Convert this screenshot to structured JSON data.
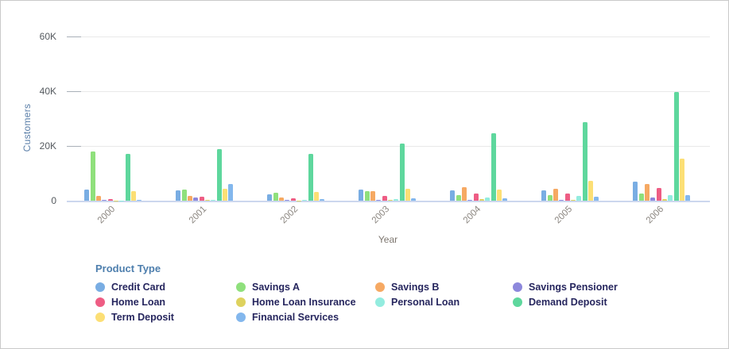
{
  "window": {
    "background": "#ffffff",
    "border_color": "#c9c9c9"
  },
  "colors": {
    "gridline": "#e9e9e9",
    "tick_dash": "#a9b0b8",
    "baseline": "#ccd7ee",
    "y_axis_title": "#5b7fa9",
    "x_axis_title": "#7d766f",
    "tick_label": "#555a5f",
    "x_tick_label": "#8b8680",
    "legend_title_color": "#4d7ead",
    "legend_label_color": "#26265e"
  },
  "chart_data": {
    "type": "bar",
    "title": "",
    "xlabel": "Year",
    "ylabel": "Customers",
    "categories": [
      "2000",
      "2001",
      "2002",
      "2003",
      "2004",
      "2005",
      "2006"
    ],
    "ylim": [
      0,
      60000
    ],
    "y_ticks": [
      {
        "label": "0",
        "value": 0
      },
      {
        "label": "20K",
        "value": 20000
      },
      {
        "label": "40K",
        "value": 40000
      },
      {
        "label": "60K",
        "value": 60000
      }
    ],
    "grid": true,
    "legend": {
      "title": "Product Type",
      "position": "bottom"
    },
    "series": [
      {
        "name": "Credit Card",
        "color": "#79ade3",
        "values": [
          4200,
          3800,
          2400,
          4000,
          3800,
          3900,
          7000
        ]
      },
      {
        "name": "Savings A",
        "color": "#8fe07c",
        "values": [
          18000,
          4100,
          2900,
          3600,
          2000,
          2000,
          2600
        ]
      },
      {
        "name": "Savings B",
        "color": "#f6a963",
        "values": [
          1800,
          1700,
          1200,
          3600,
          4900,
          4400,
          6200
        ]
      },
      {
        "name": "Savings Pensioner",
        "color": "#8d88dc",
        "values": [
          150,
          1200,
          150,
          300,
          150,
          400,
          1200
        ]
      },
      {
        "name": "Home Loan",
        "color": "#ee5d84",
        "values": [
          500,
          1500,
          900,
          1800,
          2600,
          2700,
          4600
        ]
      },
      {
        "name": "Home Loan Insurance",
        "color": "#ded25e",
        "values": [
          80,
          150,
          100,
          200,
          600,
          250,
          500
        ]
      },
      {
        "name": "Personal Loan",
        "color": "#93ecdf",
        "values": [
          100,
          250,
          200,
          700,
          1200,
          1700,
          2000
        ]
      },
      {
        "name": "Demand Deposit",
        "color": "#5ed79d",
        "values": [
          17000,
          18900,
          17100,
          20900,
          24600,
          28700,
          39700
        ]
      },
      {
        "name": "Term Deposit",
        "color": "#fcdf75",
        "values": [
          3600,
          4300,
          3300,
          4300,
          4200,
          7300,
          15400
        ]
      },
      {
        "name": "Financial Services",
        "color": "#83b7ed",
        "values": [
          200,
          6100,
          450,
          800,
          900,
          1400,
          2100
        ]
      }
    ]
  }
}
